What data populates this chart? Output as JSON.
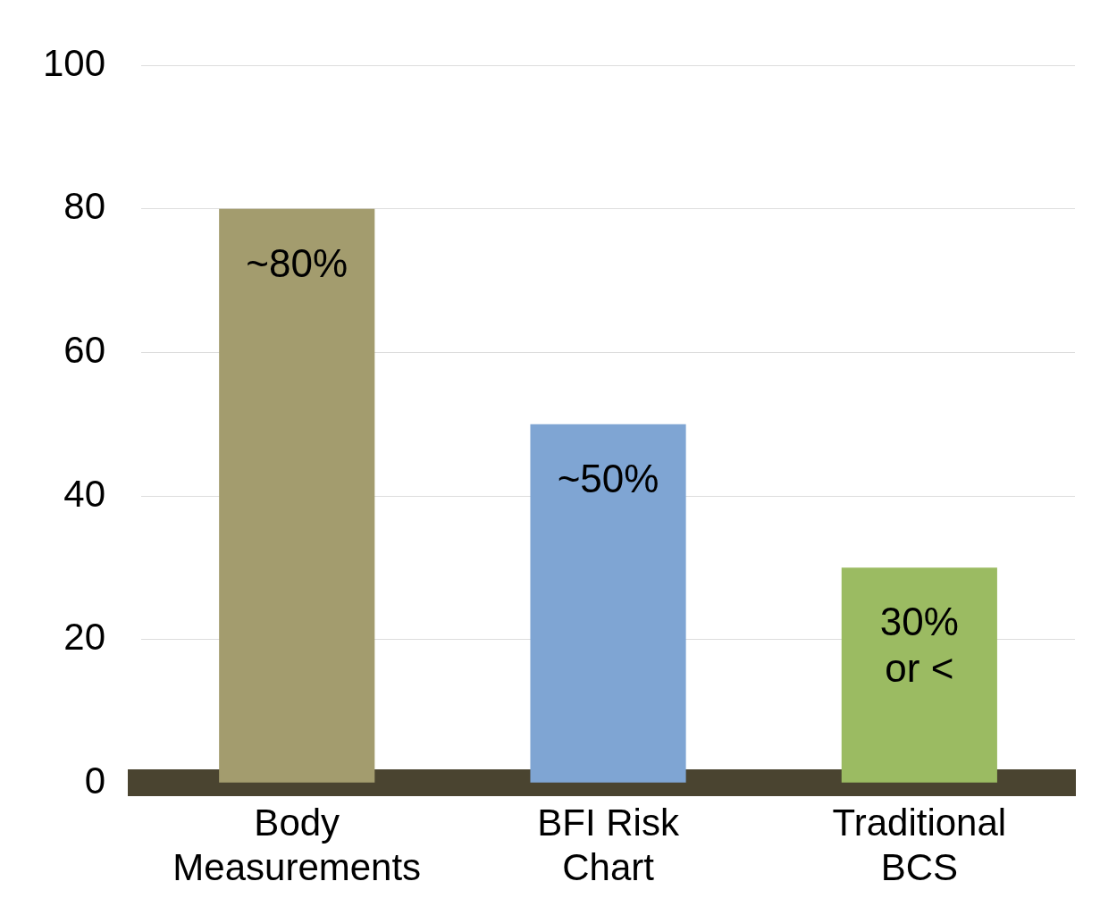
{
  "chart_data": {
    "type": "bar",
    "categories": [
      "Body Measurements",
      "BFI Risk Chart",
      "Traditional BCS"
    ],
    "values": [
      80,
      50,
      30
    ],
    "colors": [
      "#a39c6e",
      "#7fa5d3",
      "#9bbb62"
    ],
    "value_labels": [
      "~80%",
      "~50%",
      "30% or <"
    ],
    "ylim": [
      0,
      100
    ],
    "yticks": [
      0,
      20,
      40,
      60,
      80,
      100
    ],
    "grid": "y"
  }
}
